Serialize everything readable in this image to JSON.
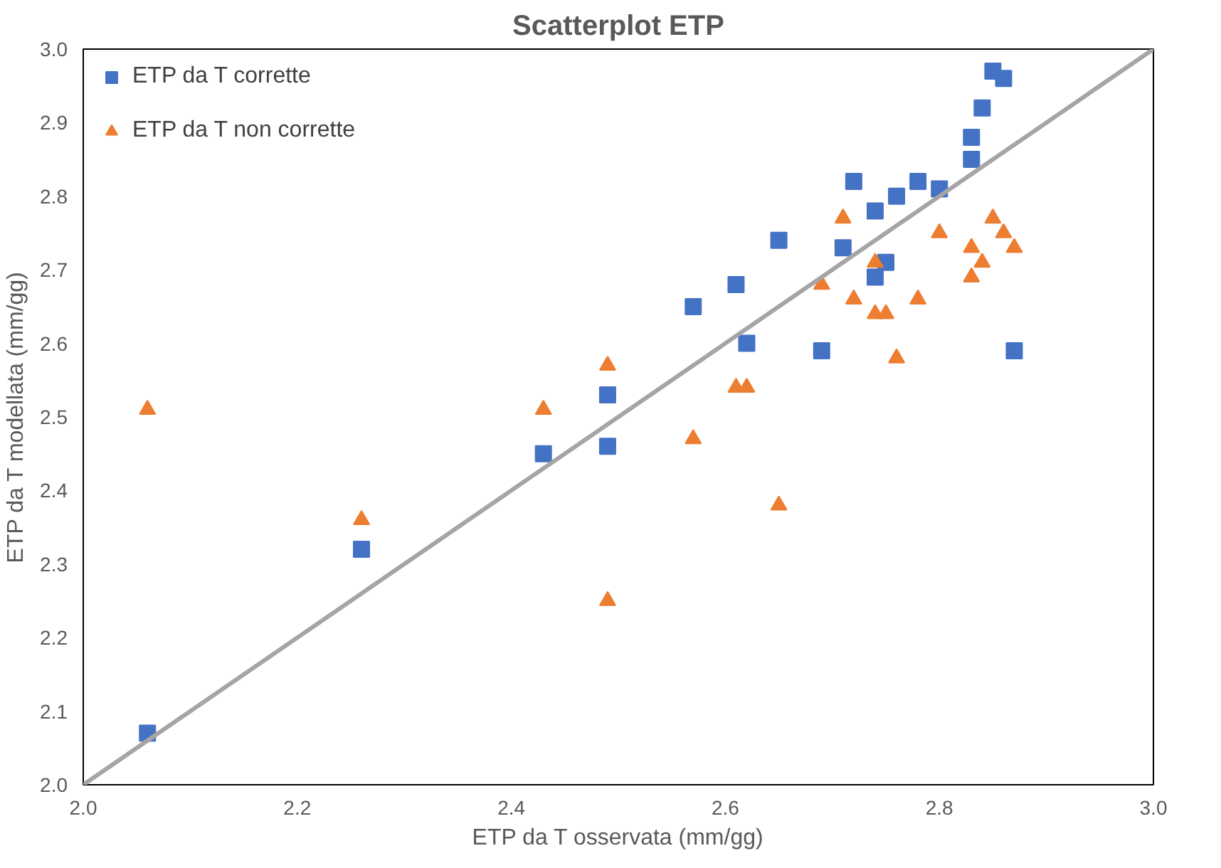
{
  "chart_data": {
    "type": "scatter",
    "title": "Scatterplot ETP",
    "xlabel": "ETP da T osservata (mm/gg)",
    "ylabel": "ETP da T modellata (mm/gg)",
    "xlim": [
      2.0,
      3.0
    ],
    "ylim": [
      2.0,
      3.0
    ],
    "xticks": [
      {
        "value": 2.0,
        "label": "2.0"
      },
      {
        "value": 2.2,
        "label": "2.2"
      },
      {
        "value": 2.4,
        "label": "2.4"
      },
      {
        "value": 2.6,
        "label": "2.6"
      },
      {
        "value": 2.8,
        "label": "2.8"
      },
      {
        "value": 3.0,
        "label": "3.0"
      }
    ],
    "yticks": [
      {
        "value": 2.0,
        "label": "2.0"
      },
      {
        "value": 2.1,
        "label": "2.1"
      },
      {
        "value": 2.2,
        "label": "2.2"
      },
      {
        "value": 2.3,
        "label": "2.3"
      },
      {
        "value": 2.4,
        "label": "2.4"
      },
      {
        "value": 2.5,
        "label": "2.5"
      },
      {
        "value": 2.6,
        "label": "2.6"
      },
      {
        "value": 2.7,
        "label": "2.7"
      },
      {
        "value": 2.8,
        "label": "2.8"
      },
      {
        "value": 2.9,
        "label": "2.9"
      },
      {
        "value": 3.0,
        "label": "3.0"
      }
    ],
    "grid": false,
    "legend": "top left",
    "series": [
      {
        "name": "ETP da T corrette",
        "color": "#4472c4",
        "marker": "square",
        "x": [
          2.06,
          2.26,
          2.43,
          2.49,
          2.49,
          2.57,
          2.61,
          2.65,
          2.62,
          2.69,
          2.72,
          2.74,
          2.71,
          2.74,
          2.75,
          2.76,
          2.78,
          2.8,
          2.83,
          2.83,
          2.84,
          2.85,
          2.86,
          2.87
        ],
        "values": [
          2.07,
          2.32,
          2.45,
          2.53,
          2.46,
          2.65,
          2.68,
          2.74,
          2.6,
          2.59,
          2.82,
          2.78,
          2.73,
          2.69,
          2.71,
          2.8,
          2.82,
          2.81,
          2.85,
          2.88,
          2.92,
          2.97,
          2.96,
          2.59
        ]
      },
      {
        "name": "ETP da T non corrette",
        "color": "#ed7d31",
        "marker": "triangle",
        "x": [
          2.06,
          2.26,
          2.43,
          2.49,
          2.49,
          2.57,
          2.61,
          2.62,
          2.65,
          2.69,
          2.71,
          2.74,
          2.72,
          2.74,
          2.75,
          2.76,
          2.78,
          2.8,
          2.83,
          2.84,
          2.83,
          2.85,
          2.86,
          2.87
        ],
        "values": [
          2.51,
          2.36,
          2.51,
          2.57,
          2.25,
          2.47,
          2.54,
          2.54,
          2.38,
          2.68,
          2.77,
          2.71,
          2.66,
          2.64,
          2.64,
          2.58,
          2.66,
          2.75,
          2.73,
          2.71,
          2.69,
          2.77,
          2.75,
          2.73
        ]
      },
      {
        "type": "line",
        "color": "#a5a5a5",
        "marker": "none",
        "line_style": "solid",
        "x": [
          2.0,
          3.0
        ],
        "values": [
          2.0,
          3.0
        ]
      }
    ]
  }
}
